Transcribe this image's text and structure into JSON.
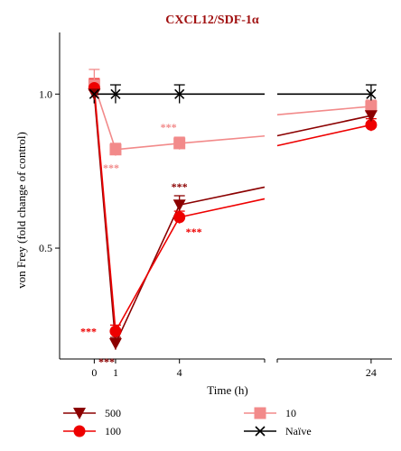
{
  "chart_data": {
    "type": "line",
    "title": "CXCL12/SDF-1α",
    "xlabel": "Time (h)",
    "ylabel": "von Frey (fold change of control)",
    "x_ticks": [
      0,
      1,
      4,
      24
    ],
    "y_ticks": [
      0.5,
      1.0
    ],
    "y_tick_labels": [
      "0.5",
      "1.0"
    ],
    "x_tick_labels": [
      "0",
      "1",
      "4",
      "24"
    ],
    "xlim": [
      -1.5,
      25
    ],
    "ylim": [
      0.14,
      1.2
    ],
    "x_axis_break": [
      8,
      19.5
    ],
    "series": [
      {
        "name": "500",
        "color": "#8b0000",
        "marker": "triangle-down",
        "x": [
          0,
          1,
          4,
          24
        ],
        "y": [
          1.0,
          0.19,
          0.64,
          0.93
        ],
        "errors": [
          0.03,
          0.02,
          0.03,
          0.02
        ],
        "significance": [
          "",
          "***",
          "***",
          ""
        ]
      },
      {
        "name": "100",
        "color": "#ee0000",
        "marker": "circle",
        "x": [
          0,
          1,
          4,
          24
        ],
        "y": [
          1.02,
          0.23,
          0.6,
          0.9
        ],
        "errors": [
          0.03,
          0.02,
          0.02,
          0.02
        ],
        "significance": [
          "",
          "***",
          "***",
          ""
        ]
      },
      {
        "name": "10",
        "color": "#f28a8a",
        "marker": "square",
        "x": [
          0,
          1,
          4,
          24
        ],
        "y": [
          1.03,
          0.82,
          0.84,
          0.96
        ],
        "errors": [
          0.05,
          0.02,
          0.02,
          0.02
        ],
        "significance": [
          "",
          "***",
          "***",
          ""
        ]
      },
      {
        "name": "Naïve",
        "color": "#000000",
        "marker": "x",
        "x": [
          0,
          1,
          4,
          24
        ],
        "y": [
          1.0,
          1.0,
          1.0,
          1.0
        ],
        "errors": [
          0.03,
          0.03,
          0.03,
          0.03
        ],
        "significance": [
          "",
          "",
          "",
          ""
        ]
      }
    ],
    "legend": {
      "placement": "bottom",
      "items": [
        "500",
        "100",
        "10",
        "Naïve"
      ]
    },
    "grid": false
  }
}
